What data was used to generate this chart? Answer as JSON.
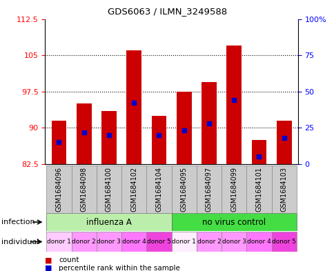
{
  "title": "GDS6063 / ILMN_3249588",
  "samples": [
    "GSM1684096",
    "GSM1684098",
    "GSM1684100",
    "GSM1684102",
    "GSM1684104",
    "GSM1684095",
    "GSM1684097",
    "GSM1684099",
    "GSM1684101",
    "GSM1684103"
  ],
  "count_values": [
    91.5,
    95.0,
    93.5,
    106.0,
    92.5,
    97.5,
    99.5,
    107.0,
    87.5,
    91.5
  ],
  "percentile_values": [
    15,
    22,
    20,
    42,
    20,
    23,
    28,
    44,
    5,
    18
  ],
  "ymin": 82.5,
  "ymax": 112.5,
  "yticks": [
    82.5,
    90,
    97.5,
    105,
    112.5
  ],
  "ytick_labels": [
    "82.5",
    "90",
    "97.5",
    "105",
    "112.5"
  ],
  "right_yticks": [
    0,
    25,
    50,
    75,
    100
  ],
  "right_ytick_labels": [
    "0",
    "25",
    "50",
    "75",
    "100%"
  ],
  "gridlines": [
    90,
    97.5,
    105
  ],
  "bar_color": "#cc0000",
  "percentile_color": "#0000cc",
  "bar_width": 0.6,
  "infection_groups": [
    {
      "label": "influenza A",
      "start": 0,
      "end": 4,
      "color": "#bbeeaa"
    },
    {
      "label": "no virus control",
      "start": 5,
      "end": 9,
      "color": "#44dd44"
    }
  ],
  "individual_labels": [
    "donor 1",
    "donor 2",
    "donor 3",
    "donor 4",
    "donor 5",
    "donor 1",
    "donor 2",
    "donor 3",
    "donor 4",
    "donor 5"
  ],
  "individual_colors": [
    "#ffccff",
    "#ff99ff",
    "#ff99ff",
    "#ff77ff",
    "#ee44dd",
    "#ffeeff",
    "#ff99ff",
    "#ff99ff",
    "#ff77ff",
    "#ee44dd"
  ],
  "infection_row_label": "infection",
  "individual_row_label": "individual",
  "legend_count_label": "count",
  "legend_percentile_label": "percentile rank within the sample"
}
